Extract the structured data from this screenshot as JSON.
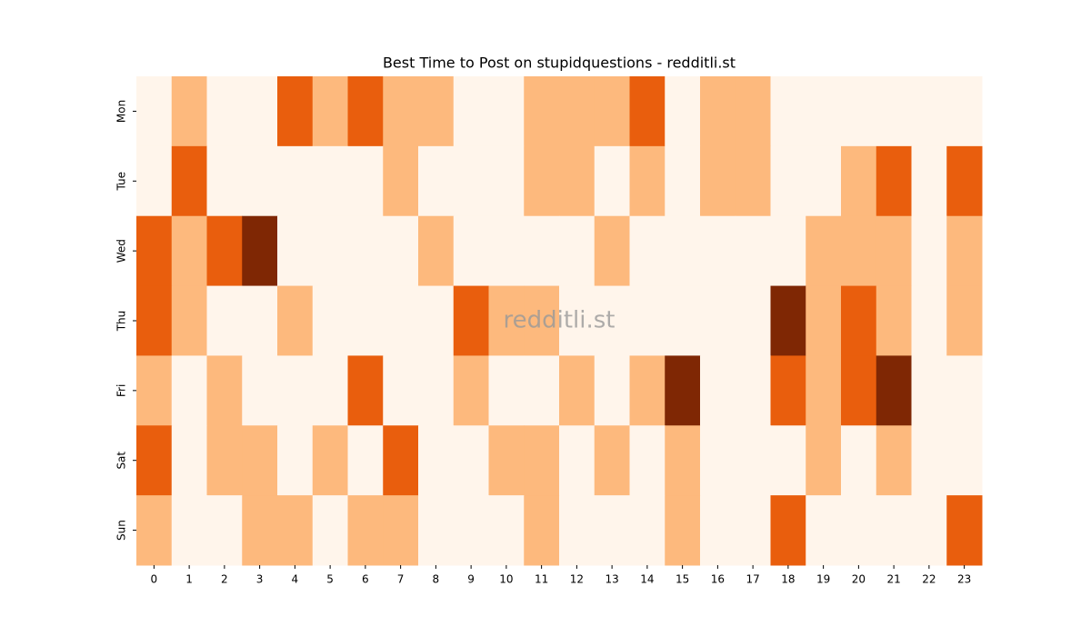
{
  "chart_data": {
    "type": "heatmap",
    "title": "Best Time to Post on stupidquestions - redditli.st",
    "watermark": "redditli.st",
    "x": [
      0,
      1,
      2,
      3,
      4,
      5,
      6,
      7,
      8,
      9,
      10,
      11,
      12,
      13,
      14,
      15,
      16,
      17,
      18,
      19,
      20,
      21,
      22,
      23
    ],
    "y": [
      "Mon",
      "Tue",
      "Wed",
      "Thu",
      "Fri",
      "Sat",
      "Sun"
    ],
    "colormap": [
      "#fff5eb",
      "#fdb97d",
      "#e95e0d",
      "#7f2704"
    ],
    "zlim": [
      0,
      3
    ],
    "values": [
      [
        0,
        1,
        0,
        0,
        2,
        1,
        2,
        1,
        1,
        0,
        0,
        1,
        1,
        1,
        2,
        0,
        1,
        1,
        0,
        0,
        0,
        0,
        0,
        0
      ],
      [
        0,
        2,
        0,
        0,
        0,
        0,
        0,
        1,
        0,
        0,
        0,
        1,
        1,
        0,
        1,
        0,
        1,
        1,
        0,
        0,
        1,
        2,
        0,
        2
      ],
      [
        2,
        1,
        2,
        3,
        0,
        0,
        0,
        0,
        1,
        0,
        0,
        0,
        0,
        1,
        0,
        0,
        0,
        0,
        0,
        1,
        1,
        1,
        0,
        1
      ],
      [
        2,
        1,
        0,
        0,
        1,
        0,
        0,
        0,
        0,
        2,
        1,
        1,
        0,
        0,
        0,
        0,
        0,
        0,
        3,
        1,
        2,
        1,
        0,
        1
      ],
      [
        1,
        0,
        1,
        0,
        0,
        0,
        2,
        0,
        0,
        1,
        0,
        0,
        1,
        0,
        1,
        3,
        0,
        0,
        2,
        1,
        2,
        3,
        0,
        0
      ],
      [
        2,
        0,
        1,
        1,
        0,
        1,
        0,
        2,
        0,
        0,
        1,
        1,
        0,
        1,
        0,
        1,
        0,
        0,
        0,
        1,
        0,
        1,
        0,
        0
      ],
      [
        1,
        0,
        0,
        1,
        1,
        0,
        1,
        1,
        0,
        0,
        0,
        1,
        0,
        0,
        0,
        1,
        0,
        0,
        2,
        0,
        0,
        0,
        0,
        2
      ]
    ]
  }
}
